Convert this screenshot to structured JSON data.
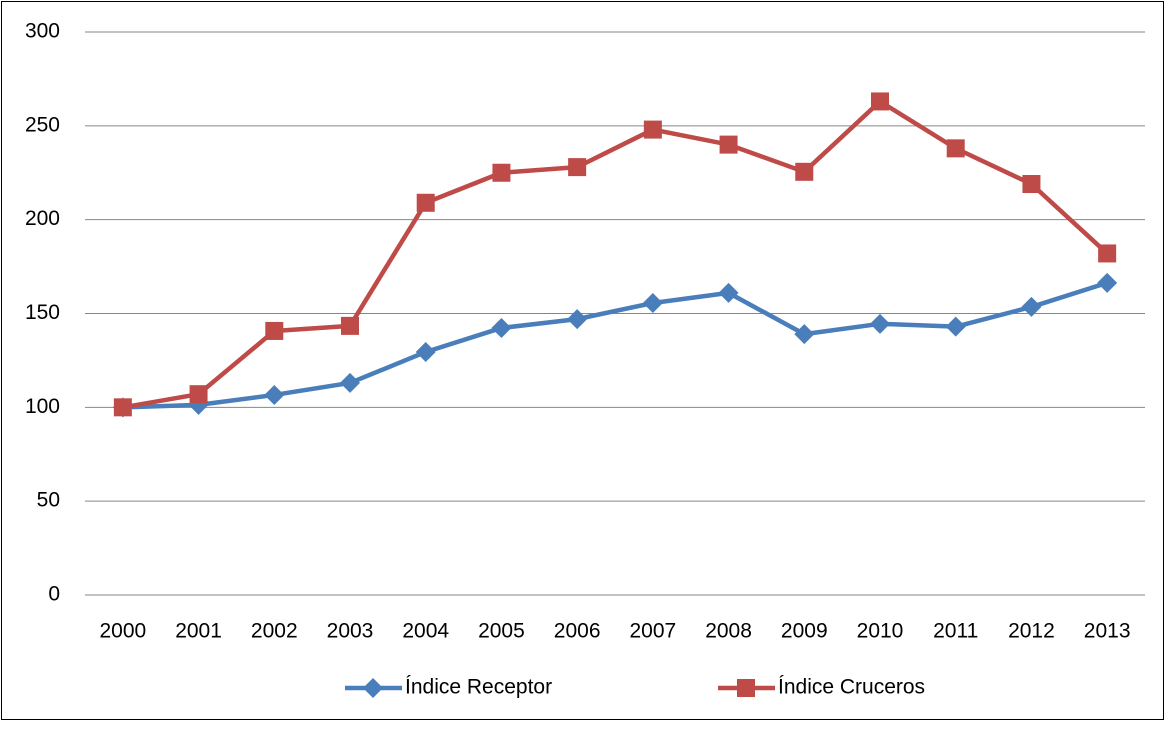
{
  "chart_data": {
    "type": "line",
    "categories": [
      "2000",
      "2001",
      "2002",
      "2003",
      "2004",
      "2005",
      "2006",
      "2007",
      "2008",
      "2009",
      "2010",
      "2011",
      "2012",
      "2013"
    ],
    "series": [
      {
        "name": "Índice Receptor",
        "color": "#4a7ebb",
        "marker": "diamond",
        "values": [
          100,
          101.3,
          106.6,
          113,
          129.5,
          142.3,
          147,
          155.6,
          161,
          139,
          144.5,
          143,
          153.5,
          166.3
        ]
      },
      {
        "name": "Índice Cruceros",
        "color": "#be4b48",
        "marker": "square",
        "values": [
          100,
          107,
          140.7,
          143.4,
          209,
          225,
          228,
          248,
          240,
          225.5,
          263,
          238,
          219,
          182
        ]
      }
    ],
    "ylim": [
      0,
      300
    ],
    "yticks": [
      0,
      50,
      100,
      150,
      200,
      250,
      300
    ],
    "grid": true,
    "legend": "bottom"
  }
}
